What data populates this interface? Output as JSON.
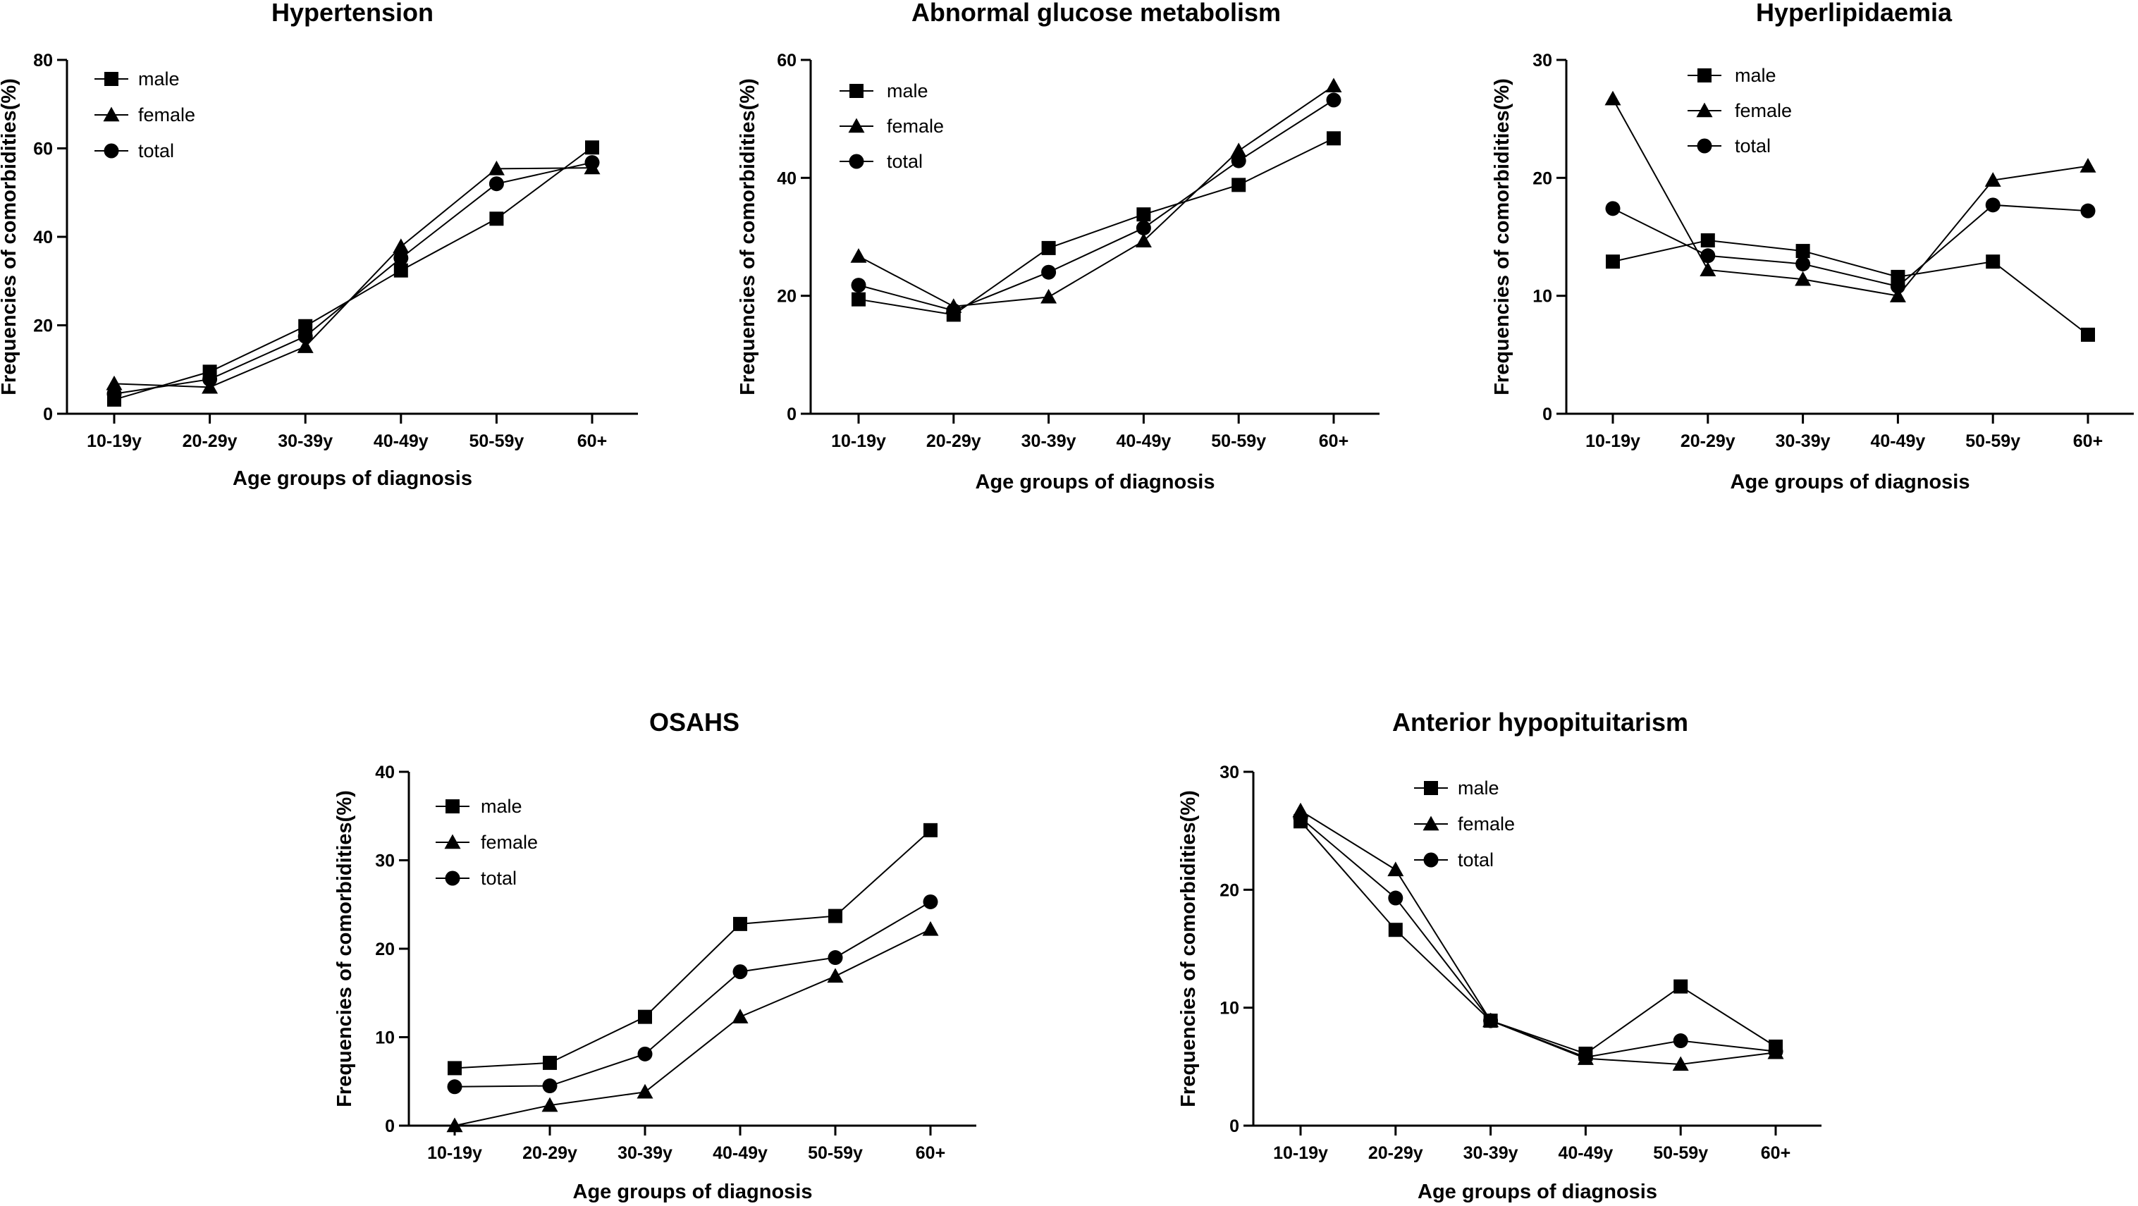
{
  "figure": {
    "background": "#ffffff",
    "ink": "#000000"
  },
  "chart_data": [
    {
      "type": "line",
      "title": "Hypertension",
      "xlabel": "Age groups of diagnosis",
      "ylabel": "Frequencies of comorbidities(%)",
      "categories": [
        "10-19y",
        "20-29y",
        "30-39y",
        "40-49y",
        "50-59y",
        "60+"
      ],
      "ylim": [
        0,
        80
      ],
      "yticks": [
        0,
        20,
        40,
        60,
        80
      ],
      "legend_position": "top-left",
      "series": [
        {
          "name": "male",
          "marker": "square",
          "values": [
            3.2,
            9.5,
            19.8,
            32.4,
            44.1,
            60.2
          ]
        },
        {
          "name": "female",
          "marker": "triangle",
          "values": [
            6.8,
            6.0,
            15.2,
            37.8,
            55.4,
            55.6
          ]
        },
        {
          "name": "total",
          "marker": "circle",
          "values": [
            4.5,
            7.8,
            17.5,
            35.2,
            52.0,
            56.8
          ]
        }
      ]
    },
    {
      "type": "line",
      "title": "Abnormal glucose metabolism",
      "xlabel": "Age groups of diagnosis",
      "ylabel": "Frequencies of comorbidities(%)",
      "categories": [
        "10-19y",
        "20-29y",
        "30-39y",
        "40-49y",
        "50-59y",
        "60+"
      ],
      "ylim": [
        0,
        60
      ],
      "yticks": [
        0,
        20,
        40,
        60
      ],
      "legend_position": "top-left",
      "series": [
        {
          "name": "male",
          "marker": "square",
          "values": [
            19.4,
            16.8,
            28.1,
            33.8,
            38.8,
            46.7
          ]
        },
        {
          "name": "female",
          "marker": "triangle",
          "values": [
            26.7,
            18.2,
            19.8,
            29.3,
            44.6,
            55.6
          ]
        },
        {
          "name": "total",
          "marker": "circle",
          "values": [
            21.8,
            17.5,
            24.0,
            31.5,
            42.9,
            53.2
          ]
        }
      ]
    },
    {
      "type": "line",
      "title": "Hyperlipidaemia",
      "xlabel": "Age groups of diagnosis",
      "ylabel": "Frequencies of comorbidities(%)",
      "categories": [
        "10-19y",
        "20-29y",
        "30-39y",
        "40-49y",
        "50-59y",
        "60+"
      ],
      "ylim": [
        0,
        30
      ],
      "yticks": [
        0,
        10,
        20,
        30
      ],
      "legend_position": "top-center",
      "series": [
        {
          "name": "male",
          "marker": "square",
          "values": [
            12.9,
            14.7,
            13.8,
            11.6,
            12.9,
            6.7
          ]
        },
        {
          "name": "female",
          "marker": "triangle",
          "values": [
            26.7,
            12.2,
            11.4,
            10.0,
            19.8,
            21.0
          ]
        },
        {
          "name": "total",
          "marker": "circle",
          "values": [
            17.4,
            13.4,
            12.7,
            10.8,
            17.7,
            17.2
          ]
        }
      ]
    },
    {
      "type": "line",
      "title": "OSAHS",
      "xlabel": "Age groups of diagnosis",
      "ylabel": "Frequencies of comorbidities(%)",
      "categories": [
        "10-19y",
        "20-29y",
        "30-39y",
        "40-49y",
        "50-59y",
        "60+"
      ],
      "ylim": [
        0,
        40
      ],
      "yticks": [
        0,
        10,
        20,
        30,
        40
      ],
      "legend_position": "top-left",
      "series": [
        {
          "name": "male",
          "marker": "square",
          "values": [
            6.5,
            7.1,
            12.3,
            22.8,
            23.7,
            33.4
          ]
        },
        {
          "name": "female",
          "marker": "triangle",
          "values": [
            0.0,
            2.3,
            3.8,
            12.3,
            16.9,
            22.2
          ]
        },
        {
          "name": "total",
          "marker": "circle",
          "values": [
            4.4,
            4.5,
            8.1,
            17.4,
            19.0,
            25.3
          ]
        }
      ]
    },
    {
      "type": "line",
      "title": "Anterior hypopituitarism",
      "xlabel": "Age groups of diagnosis",
      "ylabel": "Frequencies of comorbidities(%)",
      "categories": [
        "10-19y",
        "20-29y",
        "30-39y",
        "40-49y",
        "50-59y",
        "60+"
      ],
      "ylim": [
        0,
        30
      ],
      "yticks": [
        0,
        10,
        20,
        30
      ],
      "legend_position": "top-center",
      "series": [
        {
          "name": "male",
          "marker": "square",
          "values": [
            25.8,
            16.6,
            8.9,
            6.1,
            11.8,
            6.7
          ]
        },
        {
          "name": "female",
          "marker": "triangle",
          "values": [
            26.7,
            21.7,
            8.9,
            5.7,
            5.2,
            6.2
          ]
        },
        {
          "name": "total",
          "marker": "circle",
          "values": [
            26.1,
            19.3,
            8.9,
            5.8,
            7.2,
            6.3
          ]
        }
      ]
    }
  ]
}
